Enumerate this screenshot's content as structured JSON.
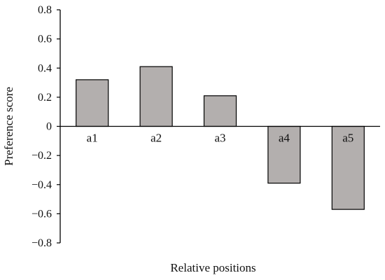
{
  "chart_data": {
    "type": "bar",
    "title": "",
    "xlabel": "Relative positions",
    "ylabel": "Preference score",
    "categories": [
      "a1",
      "a2",
      "a3",
      "a4",
      "a5"
    ],
    "values": [
      0.32,
      0.41,
      0.21,
      -0.39,
      -0.57
    ],
    "ylim": [
      -0.8,
      0.8
    ],
    "yticks": [
      0.8,
      0.6,
      0.4,
      0.2,
      0,
      -0.2,
      -0.4,
      -0.6,
      -0.8
    ],
    "ytick_labels": [
      "0.8",
      "0.6",
      "0.4",
      "0.2",
      "0",
      "−0.2",
      "−0.4",
      "−0.6",
      "−0.8"
    ],
    "grid": false,
    "legend": "none",
    "bar_color": "#b3afae",
    "bar_edge_color": "#000000"
  }
}
